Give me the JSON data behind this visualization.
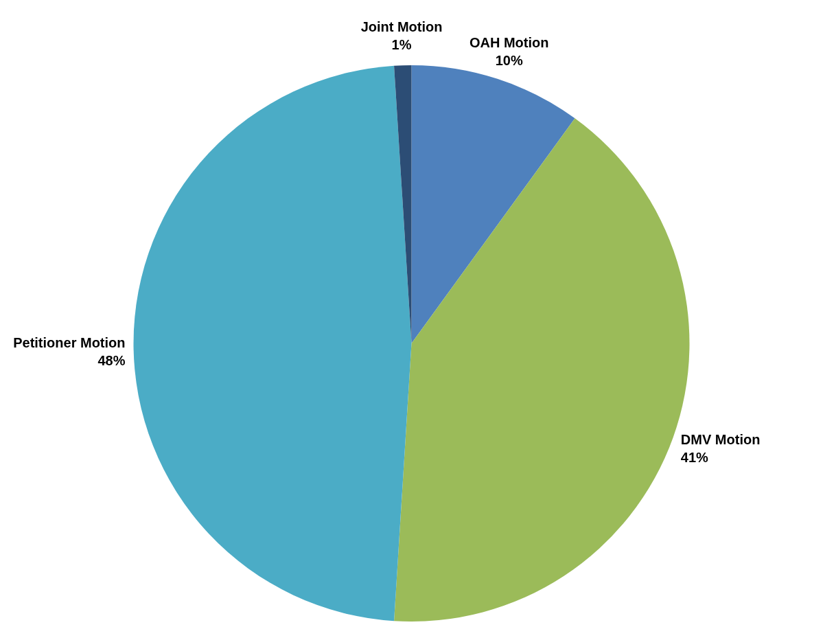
{
  "chart_data": {
    "type": "pie",
    "categories": [
      "OAH Motion",
      "DMV Motion",
      "Petitioner Motion",
      "Joint Motion"
    ],
    "values": [
      10,
      41,
      48,
      1
    ],
    "value_labels": [
      "10%",
      "41%",
      "48%",
      "1%"
    ],
    "colors": [
      "#4f81bd",
      "#9bbb59",
      "#4bacc6",
      "#2c4d75"
    ]
  }
}
